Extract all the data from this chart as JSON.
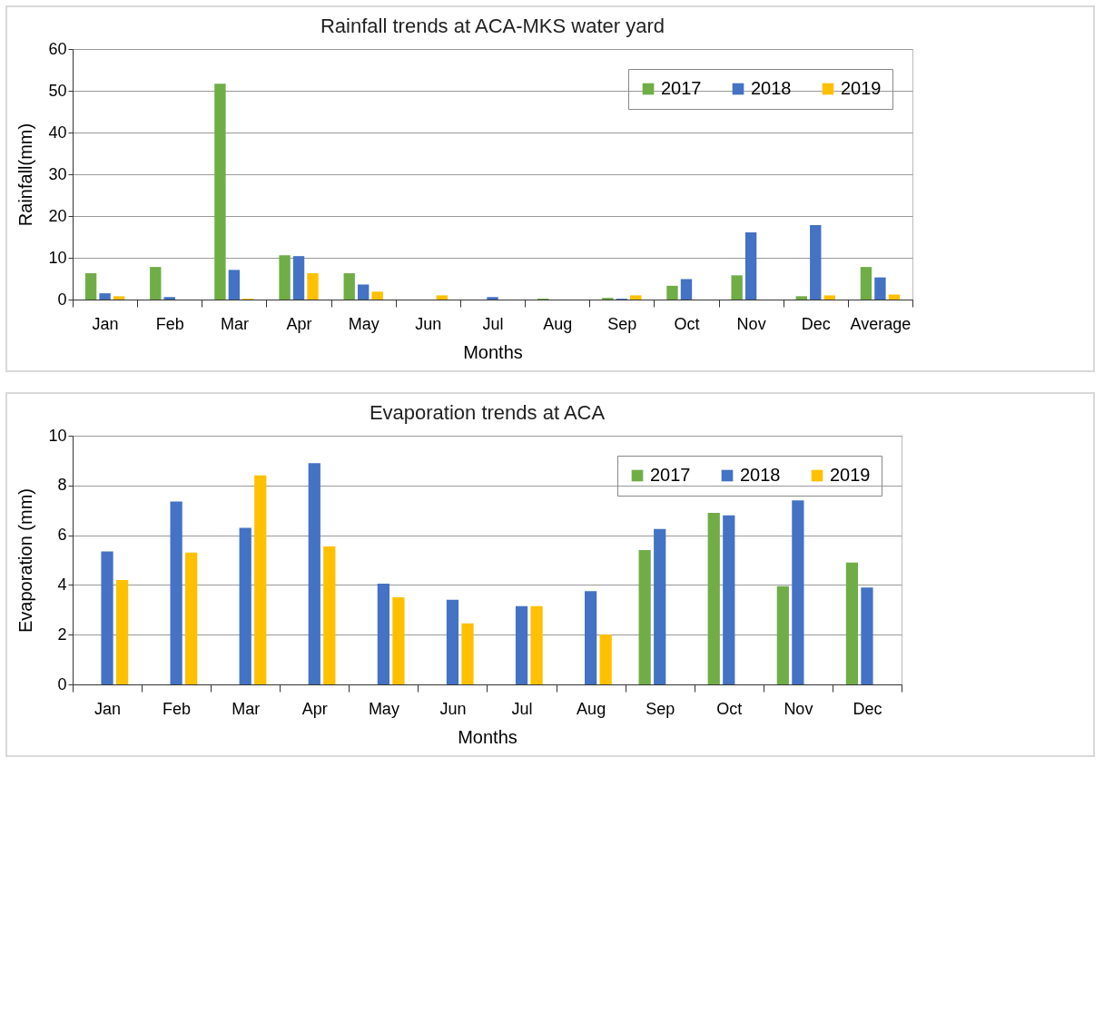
{
  "chart_data": [
    {
      "type": "bar",
      "title": "Rainfall trends at ACA-MKS water yard",
      "xlabel": "Months",
      "ylabel": "Rainfall(mm)",
      "categories": [
        "Jan",
        "Feb",
        "Mar",
        "Apr",
        "May",
        "Jun",
        "Jul",
        "Aug",
        "Sep",
        "Oct",
        "Nov",
        "Dec",
        "Average"
      ],
      "series": [
        {
          "name": "2017",
          "color": "#70ad47",
          "values": [
            6.3,
            7.8,
            51.7,
            10.6,
            6.3,
            0,
            0,
            0.2,
            0.4,
            3.3,
            5.8,
            0.8,
            7.8
          ]
        },
        {
          "name": "2018",
          "color": "#4472c4",
          "values": [
            1.5,
            0.6,
            7.1,
            10.4,
            3.6,
            0,
            0.6,
            0,
            0.2,
            4.9,
            16.1,
            17.8,
            5.3
          ]
        },
        {
          "name": "2019",
          "color": "#ffc000",
          "values": [
            0.8,
            0,
            0.2,
            6.3,
            1.9,
            1.0,
            0,
            0,
            1.0,
            0,
            0,
            1.0,
            1.2
          ]
        }
      ],
      "ylim": [
        0,
        60
      ],
      "yticks": [
        0,
        10,
        20,
        30,
        40,
        50,
        60
      ],
      "grid": "y",
      "legend": "top right"
    },
    {
      "type": "bar",
      "title": "Evaporation trends at ACA",
      "xlabel": "Months",
      "ylabel": "Evaporation (mm)",
      "categories": [
        "Jan",
        "Feb",
        "Mar",
        "Apr",
        "May",
        "Jun",
        "Jul",
        "Aug",
        "Sep",
        "Oct",
        "Nov",
        "Dec"
      ],
      "series": [
        {
          "name": "2017",
          "color": "#70ad47",
          "values": [
            null,
            null,
            null,
            null,
            null,
            null,
            null,
            null,
            5.4,
            6.9,
            3.95,
            4.9
          ]
        },
        {
          "name": "2018",
          "color": "#4472c4",
          "values": [
            5.35,
            7.35,
            6.3,
            8.9,
            4.05,
            3.4,
            3.15,
            3.75,
            6.25,
            6.8,
            7.4,
            3.9
          ]
        },
        {
          "name": "2019",
          "color": "#ffc000",
          "values": [
            4.2,
            5.3,
            8.4,
            5.55,
            3.5,
            2.45,
            3.15,
            2.0,
            null,
            null,
            null,
            null
          ]
        }
      ],
      "ylim": [
        0,
        10
      ],
      "yticks": [
        0,
        2,
        4,
        6,
        8,
        10
      ],
      "grid": "y",
      "legend": "top right"
    }
  ]
}
